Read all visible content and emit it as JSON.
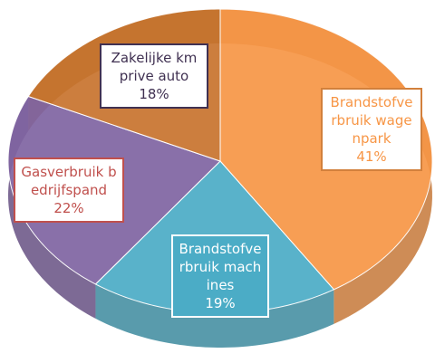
{
  "chart_data": {
    "type": "pie",
    "categories": [
      "Brandstofverbruik wagenpark",
      "Brandstofverbruik machines",
      "Gasverbruik bedrijfspand",
      "Zakelijke km prive auto"
    ],
    "values": [
      41,
      19,
      22,
      18
    ],
    "value_labels": [
      "41%",
      "19%",
      "22%",
      "18%"
    ],
    "colors": [
      "#f79646",
      "#4bacc6",
      "#8064a2",
      "#c8742e"
    ],
    "start_angle": 0,
    "direction": "clockwise",
    "3d": true
  }
}
